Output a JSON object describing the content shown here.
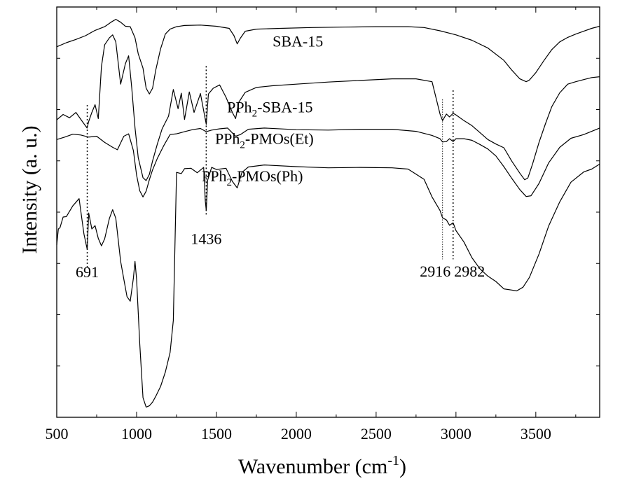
{
  "chart_data": {
    "type": "line",
    "xlabel": "Wavenumber (cm",
    "xlabel_sup": "-1",
    "xlabel_suffix": ")",
    "ylabel": "Intensity (a. u.)",
    "xlim": [
      500,
      3900
    ],
    "ylim": [
      0,
      100
    ],
    "xticks": [
      500,
      1000,
      1500,
      2000,
      2500,
      3000,
      3500
    ],
    "grid": false,
    "legend": "none",
    "series": [
      {
        "name": "SBA-15",
        "label_main": "SBA-15",
        "label_sub": "",
        "label_rest": "",
        "label_x": 2010,
        "label_y": 90.4,
        "x": [
          500,
          560,
          620,
          680,
          740,
          800,
          840,
          870,
          900,
          930,
          960,
          990,
          1010,
          1040,
          1060,
          1080,
          1100,
          1120,
          1150,
          1180,
          1210,
          1250,
          1300,
          1400,
          1500,
          1580,
          1610,
          1630,
          1650,
          1680,
          1750,
          1900,
          2100,
          2300,
          2500,
          2700,
          2800,
          2900,
          3000,
          3100,
          3200,
          3300,
          3350,
          3400,
          3440,
          3460,
          3500,
          3550,
          3600,
          3650,
          3700,
          3750,
          3800,
          3850,
          3900
        ],
        "y": [
          90.3,
          91.3,
          92.1,
          93.0,
          94.3,
          95.2,
          96.3,
          97.0,
          96.3,
          95.3,
          95.2,
          92.5,
          88.6,
          85.1,
          80.2,
          78.8,
          80.2,
          84.6,
          89.8,
          93.4,
          94.6,
          95.2,
          95.5,
          95.6,
          95.3,
          94.8,
          93.0,
          91.0,
          92.4,
          94.1,
          94.6,
          94.8,
          95.0,
          95.1,
          95.2,
          95.2,
          95.0,
          94.2,
          93.2,
          91.9,
          90.0,
          87.0,
          84.6,
          82.5,
          81.8,
          82.2,
          84.0,
          86.9,
          89.6,
          91.5,
          92.6,
          93.4,
          94.1,
          94.8,
          95.3
        ]
      },
      {
        "name": "PPh2-SBA-15",
        "label_main": "PPh",
        "label_sub": "2",
        "label_rest": "-SBA-15",
        "label_x": 1835,
        "label_y": 74.3,
        "x": [
          500,
          540,
          580,
          620,
          660,
          690,
          700,
          720,
          740,
          760,
          780,
          800,
          830,
          850,
          870,
          900,
          930,
          950,
          970,
          990,
          1010,
          1040,
          1060,
          1080,
          1100,
          1130,
          1160,
          1200,
          1230,
          1260,
          1280,
          1300,
          1330,
          1360,
          1400,
          1436,
          1450,
          1480,
          1520,
          1560,
          1600,
          1620,
          1640,
          1680,
          1750,
          1850,
          2000,
          2200,
          2400,
          2600,
          2750,
          2850,
          2900,
          2916,
          2940,
          2960,
          2982,
          3000,
          3050,
          3100,
          3150,
          3200,
          3250,
          3300,
          3350,
          3400,
          3430,
          3450,
          3480,
          3520,
          3560,
          3600,
          3650,
          3700,
          3750,
          3800,
          3850,
          3900
        ],
        "y": [
          72.5,
          73.8,
          73.0,
          74.3,
          72.1,
          70.5,
          72.1,
          74.3,
          76.2,
          72.8,
          85.5,
          90.8,
          92.5,
          93.2,
          91.5,
          81.2,
          86.2,
          88.1,
          80.2,
          70.6,
          63.3,
          58.4,
          57.7,
          59.2,
          62.5,
          66.6,
          70.3,
          73.4,
          79.9,
          75.2,
          79.0,
          72.6,
          79.3,
          74.3,
          78.9,
          71.4,
          78.8,
          80.2,
          81.0,
          78.0,
          74.3,
          72.8,
          76.8,
          79.2,
          80.4,
          80.8,
          81.2,
          81.7,
          82.1,
          82.5,
          82.5,
          81.8,
          73.9,
          72.3,
          73.9,
          73.2,
          74.1,
          73.7,
          72.3,
          71.1,
          69.4,
          67.7,
          66.6,
          65.7,
          62.4,
          59.5,
          57.9,
          58.3,
          61.8,
          67.0,
          71.5,
          75.7,
          79.1,
          81.2,
          81.8,
          82.3,
          82.8,
          83.0
        ]
      },
      {
        "name": "PPh2-PMOs(Et)",
        "label_main": "PPh",
        "label_sub": "2",
        "label_rest": "-PMOs(Et)",
        "label_x": 1800,
        "label_y": 66.6,
        "x": [
          500,
          550,
          600,
          650,
          700,
          750,
          800,
          850,
          880,
          920,
          950,
          980,
          1000,
          1020,
          1040,
          1060,
          1080,
          1100,
          1130,
          1170,
          1210,
          1250,
          1300,
          1350,
          1400,
          1436,
          1470,
          1520,
          1570,
          1620,
          1650,
          1700,
          1800,
          2000,
          2200,
          2400,
          2600,
          2750,
          2850,
          2900,
          2916,
          2940,
          2960,
          2982,
          3000,
          3050,
          3100,
          3150,
          3200,
          3250,
          3300,
          3350,
          3400,
          3440,
          3470,
          3520,
          3580,
          3650,
          3720,
          3800,
          3850,
          3900
        ],
        "y": [
          67.7,
          68.3,
          69.0,
          68.8,
          68.3,
          68.5,
          67.0,
          65.8,
          65.2,
          68.5,
          69.1,
          65.0,
          59.0,
          55.2,
          53.7,
          55.1,
          57.9,
          60.3,
          63.1,
          66.2,
          68.9,
          69.1,
          69.6,
          70.1,
          70.4,
          69.6,
          70.0,
          70.3,
          70.5,
          68.5,
          68.9,
          70.2,
          70.5,
          70.1,
          70.0,
          70.2,
          70.2,
          69.7,
          68.7,
          67.9,
          67.1,
          67.2,
          67.9,
          67.2,
          67.9,
          67.9,
          67.5,
          66.5,
          65.4,
          63.7,
          61.1,
          58.2,
          55.5,
          53.8,
          54.0,
          57.0,
          62.0,
          65.8,
          68.0,
          68.9,
          69.7,
          70.5
        ]
      },
      {
        "name": "PPh2-PMOs(Ph)",
        "label_main": "PPh",
        "label_sub": "2",
        "label_rest": "-PMOs(Ph)",
        "label_x": 1725,
        "label_y": 57.5,
        "x": [
          500,
          510,
          520,
          540,
          560,
          600,
          640,
          670,
          691,
          700,
          720,
          740,
          760,
          780,
          800,
          830,
          850,
          870,
          900,
          920,
          940,
          960,
          980,
          990,
          1000,
          1020,
          1040,
          1060,
          1080,
          1100,
          1120,
          1150,
          1180,
          1210,
          1230,
          1250,
          1280,
          1300,
          1340,
          1380,
          1420,
          1430,
          1436,
          1445,
          1470,
          1500,
          1560,
          1600,
          1630,
          1660,
          1700,
          1800,
          2000,
          2200,
          2400,
          2600,
          2700,
          2800,
          2850,
          2900,
          2916,
          2940,
          2960,
          2982,
          3000,
          3050,
          3100,
          3150,
          3200,
          3250,
          3300,
          3350,
          3380,
          3420,
          3460,
          3520,
          3580,
          3650,
          3720,
          3800,
          3850,
          3900
        ],
        "y": [
          42.0,
          45.9,
          46.2,
          48.8,
          48.9,
          51.5,
          53.3,
          44.7,
          40.9,
          49.8,
          45.9,
          46.7,
          43.6,
          41.8,
          43.5,
          48.5,
          50.6,
          48.5,
          38.0,
          33.7,
          29.4,
          28.3,
          33.9,
          38.0,
          33.6,
          17.9,
          4.8,
          2.5,
          2.8,
          3.7,
          5.1,
          7.5,
          11.0,
          15.8,
          23.6,
          59.7,
          59.4,
          60.6,
          60.7,
          59.6,
          60.9,
          52.8,
          50.4,
          57.8,
          60.9,
          60.4,
          60.7,
          57.5,
          55.9,
          59.7,
          61.0,
          61.5,
          61.1,
          60.8,
          60.9,
          60.8,
          60.5,
          58.0,
          53.7,
          50.4,
          48.6,
          48.1,
          46.8,
          47.4,
          45.5,
          42.7,
          38.9,
          36.2,
          34.4,
          33.1,
          31.3,
          31.0,
          30.8,
          31.7,
          34.1,
          39.8,
          46.6,
          52.5,
          57.3,
          59.8,
          60.5,
          61.7
        ]
      }
    ],
    "annotations": [
      {
        "label": "691",
        "x": 691,
        "y_top": 76.1,
        "y_bottom": 36.1,
        "label_x": 691,
        "label_y": 34.1,
        "dash": "dotted"
      },
      {
        "label": "1436",
        "x": 1436,
        "y_top": 85.6,
        "y_bottom": 49.2,
        "label_x": 1436,
        "label_y": 42.2,
        "dash": "dotted"
      },
      {
        "label": "2916",
        "x": 2916,
        "y_top": 77.5,
        "y_bottom": 38.5,
        "label_x": 2870,
        "label_y": 34.3,
        "dash": "fine"
      },
      {
        "label": "2982",
        "x": 2982,
        "y_top": 79.7,
        "y_bottom": 38.5,
        "label_x": 3085,
        "label_y": 34.3,
        "dash": "dotted"
      }
    ]
  }
}
